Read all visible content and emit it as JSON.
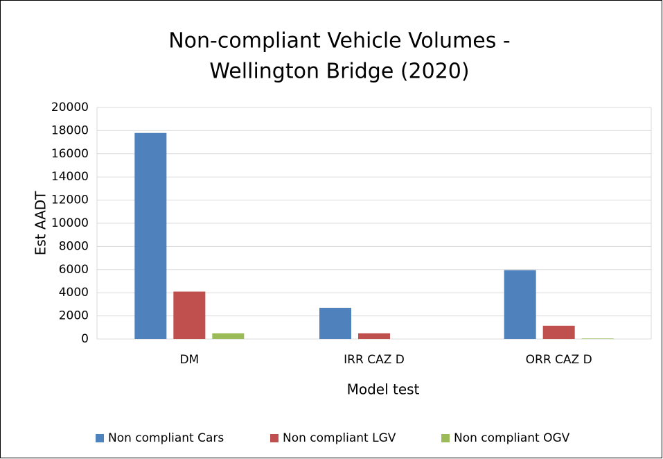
{
  "chart_data": {
    "type": "bar",
    "title": [
      "Non-compliant Vehicle Volumes -",
      "Wellington Bridge (2020)"
    ],
    "x_label": "Model test",
    "y_label": "Est AADT",
    "categories": [
      "DM",
      "IRR CAZ D",
      "ORR CAZ D"
    ],
    "series": [
      {
        "name": "Non compliant Cars",
        "color": "#4f81bd",
        "values": [
          17800,
          2700,
          5950
        ]
      },
      {
        "name": "Non compliant LGV",
        "color": "#c0504d",
        "values": [
          4100,
          500,
          1150
        ]
      },
      {
        "name": "Non compliant OGV",
        "color": "#9bbb59",
        "values": [
          500,
          0,
          50
        ]
      }
    ],
    "ylim": [
      0,
      20000
    ],
    "yticks": [
      0,
      2000,
      4000,
      6000,
      8000,
      10000,
      12000,
      14000,
      16000,
      18000,
      20000
    ],
    "grid": true,
    "legend": "bottom"
  }
}
